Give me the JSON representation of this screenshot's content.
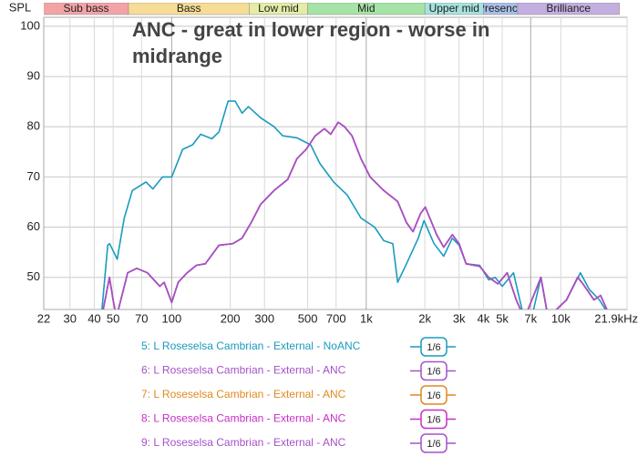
{
  "chart_data": {
    "type": "line",
    "title": "ANC - great in lower region - worse in midrange",
    "y_label": "SPL",
    "log_x": true,
    "grid": true,
    "xlim": [
      22,
      21900
    ],
    "ylim": [
      43.6,
      101.8
    ],
    "xticks": [
      22,
      30,
      40,
      50,
      70,
      100,
      200,
      300,
      500,
      700,
      {
        "value": 1000,
        "label": "1k"
      },
      {
        "value": 2000,
        "label": "2k"
      },
      {
        "value": 3000,
        "label": "3k"
      },
      {
        "value": 4000,
        "label": "4k"
      },
      {
        "value": 5000,
        "label": "5k"
      },
      {
        "value": 7000,
        "label": "7k"
      },
      {
        "value": 10000,
        "label": "10k"
      },
      {
        "value": 21900,
        "label": "21.9kHz"
      }
    ],
    "yticks": [
      50,
      60,
      70,
      80,
      90,
      100
    ],
    "bands": [
      {
        "label": "Sub bass",
        "range": [
          20,
          60
        ],
        "color": "#f3a3a6"
      },
      {
        "label": "Bass",
        "range": [
          60,
          250
        ],
        "color": "#f6dc95"
      },
      {
        "label": "Low mid",
        "range": [
          250,
          500
        ],
        "color": "#e6eca6"
      },
      {
        "label": "Mid",
        "range": [
          500,
          2000
        ],
        "color": "#a6e3a6"
      },
      {
        "label": "Upper mid",
        "range": [
          2000,
          4000
        ],
        "color": "#a6e3df"
      },
      {
        "label": "Presence",
        "range": [
          4000,
          6000
        ],
        "color": "#a9bfe8"
      },
      {
        "label": "Brilliance",
        "range": [
          6000,
          20000
        ],
        "color": "#c3aee0"
      }
    ],
    "series": [
      {
        "name": "5: L Roseselsa Cambrian - External - NoANC",
        "color": "#1a9bbd",
        "smoothing": "1/6",
        "x": [
          43,
          46.9,
          48,
          52.5,
          57,
          62.8,
          73.8,
          80,
          89.7,
          100,
          113.8,
          128,
          141,
          161,
          175,
          195,
          212,
          230,
          248,
          286,
          336,
          372,
          440,
          518,
          577,
          679,
          798,
          940,
          1104,
          1230,
          1370,
          1450,
          1610,
          1850,
          1980,
          2230,
          2500,
          2770,
          3000,
          3260,
          3830,
          4260,
          4600,
          5000,
          5710,
          6370,
          6900,
          7900,
          8600,
          10700,
          12600,
          14000,
          15800,
          18000
        ],
        "values": [
          40,
          56.4,
          56.7,
          53.6,
          61.8,
          67.3,
          69,
          67.6,
          70,
          70,
          75.5,
          76.4,
          78.5,
          77.6,
          79,
          85.1,
          85.1,
          82.7,
          84,
          81.8,
          80,
          78.2,
          77.8,
          76.4,
          72.7,
          69,
          66.4,
          61.8,
          60,
          57.3,
          56.7,
          49,
          52.7,
          57.8,
          61.3,
          56.7,
          54.2,
          57.8,
          56.4,
          52.7,
          52.4,
          49.5,
          50,
          48.2,
          50.9,
          43,
          40,
          50,
          42,
          45.5,
          50.9,
          47.6,
          45.5,
          42
        ]
      },
      {
        "name": "6: L Roseselsa Cambrian - External - ANC",
        "color": "#a452c8",
        "smoothing": "1/6",
        "x": [
          44,
          47.9,
          50,
          52,
          59.4,
          66.2,
          75,
          86.9,
          91.5,
          100,
          108,
          120,
          134,
          149,
          175,
          206,
          230,
          257,
          286,
          336,
          395,
          440,
          491,
          547,
          609,
          657,
          717,
          773,
          845,
          940,
          1047,
          1230,
          1450,
          1610,
          1740,
          1900,
          2010,
          2300,
          2500,
          2770,
          3000,
          3260,
          3830,
          4260,
          4750,
          5300,
          5900,
          6500,
          7900,
          8600,
          10700,
          12200,
          13000,
          14800,
          16000,
          18000
        ],
        "values": [
          42.7,
          50,
          45.5,
          42,
          50.9,
          51.8,
          50.9,
          48.2,
          49,
          45,
          49,
          50.9,
          52.4,
          52.7,
          56.4,
          56.7,
          57.8,
          61,
          64.5,
          67.3,
          69.5,
          73.6,
          75.5,
          78.2,
          79.6,
          78.5,
          80.9,
          80,
          78.2,
          73.6,
          70,
          67.3,
          65.1,
          60.9,
          59.1,
          62.7,
          64,
          58.5,
          56,
          58.5,
          56.7,
          52.7,
          52.2,
          50,
          48.7,
          50.9,
          45.5,
          41.8,
          50,
          42,
          45.5,
          50,
          48.7,
          45.5,
          46.4,
          42
        ]
      },
      {
        "name": "7: L Roseselsa Cambrian - External - ANC",
        "color": "#e08a1e",
        "smoothing": "1/6",
        "x": [
          44,
          47.9,
          50,
          52,
          59.4,
          66.2,
          75,
          86.9,
          91.5,
          100,
          108,
          120,
          134,
          149,
          175,
          206,
          230,
          257,
          286,
          336,
          395,
          440,
          491,
          547,
          609,
          657,
          717,
          773,
          845,
          940,
          1047,
          1230,
          1450,
          1610,
          1740,
          1900,
          2010,
          2300,
          2500,
          2770,
          3000,
          3260,
          3830,
          4260,
          4750,
          5300,
          5900,
          6500,
          7900,
          8600,
          10700,
          12200,
          13000,
          14800,
          16000,
          18000
        ],
        "values": [
          42.7,
          50,
          45.5,
          42,
          50.9,
          51.8,
          50.9,
          48.2,
          49,
          45,
          49,
          50.9,
          52.4,
          52.7,
          56.4,
          56.7,
          57.8,
          61,
          64.5,
          67.3,
          69.5,
          73.6,
          75.5,
          78.2,
          79.6,
          78.5,
          80.9,
          80,
          78.2,
          73.6,
          70,
          67.3,
          65.1,
          60.9,
          59.1,
          62.7,
          64,
          58.5,
          56,
          58.5,
          56.7,
          52.7,
          52.2,
          50,
          48.7,
          50.9,
          45.5,
          41.8,
          50,
          42,
          45.5,
          50,
          48.7,
          45.5,
          46.4,
          42
        ]
      },
      {
        "name": "8: L Roseselsa Cambrian - External - ANC",
        "color": "#c82fc6",
        "smoothing": "1/6",
        "x": [
          44,
          47.9,
          50,
          52,
          59.4,
          66.2,
          75,
          86.9,
          91.5,
          100,
          108,
          120,
          134,
          149,
          175,
          206,
          230,
          257,
          286,
          336,
          395,
          440,
          491,
          547,
          609,
          657,
          717,
          773,
          845,
          940,
          1047,
          1230,
          1450,
          1610,
          1740,
          1900,
          2010,
          2300,
          2500,
          2770,
          3000,
          3260,
          3830,
          4260,
          4750,
          5300,
          5900,
          6500,
          7900,
          8600,
          10700,
          12200,
          13000,
          14800,
          16000,
          18000
        ],
        "values": [
          42.7,
          50,
          45.5,
          42,
          50.9,
          51.8,
          50.9,
          48.2,
          49,
          45,
          49,
          50.9,
          52.4,
          52.7,
          56.4,
          56.7,
          57.8,
          61,
          64.5,
          67.3,
          69.5,
          73.6,
          75.5,
          78.2,
          79.6,
          78.5,
          80.9,
          80,
          78.2,
          73.6,
          70,
          67.3,
          65.1,
          60.9,
          59.1,
          62.7,
          64,
          58.5,
          56,
          58.5,
          56.7,
          52.7,
          52.2,
          50,
          48.7,
          50.9,
          45.5,
          41.8,
          50,
          42,
          45.5,
          50,
          48.7,
          45.5,
          46.4,
          42
        ]
      },
      {
        "name": "9: L Roseselsa Cambrian - External - ANC",
        "color": "#a452c8",
        "smoothing": "1/6",
        "x": [
          44,
          47.9,
          50,
          52,
          59.4,
          66.2,
          75,
          86.9,
          91.5,
          100,
          108,
          120,
          134,
          149,
          175,
          206,
          230,
          257,
          286,
          336,
          395,
          440,
          491,
          547,
          609,
          657,
          717,
          773,
          845,
          940,
          1047,
          1230,
          1450,
          1610,
          1740,
          1900,
          2010,
          2300,
          2500,
          2770,
          3000,
          3260,
          3830,
          4260,
          4750,
          5300,
          5900,
          6500,
          7900,
          8600,
          10700,
          12200,
          13000,
          14800,
          16000,
          18000
        ],
        "values": [
          42.7,
          50,
          45.5,
          42,
          50.9,
          51.8,
          50.9,
          48.2,
          49,
          45,
          49,
          50.9,
          52.4,
          52.7,
          56.4,
          56.7,
          57.8,
          61,
          64.5,
          67.3,
          69.5,
          73.6,
          75.5,
          78.2,
          79.6,
          78.5,
          80.9,
          80,
          78.2,
          73.6,
          70,
          67.3,
          65.1,
          60.9,
          59.1,
          62.7,
          64,
          58.5,
          56,
          58.5,
          56.7,
          52.7,
          52.2,
          50,
          48.7,
          50.9,
          45.5,
          41.8,
          50,
          42,
          45.5,
          50,
          48.7,
          45.5,
          46.4,
          42
        ]
      }
    ]
  }
}
